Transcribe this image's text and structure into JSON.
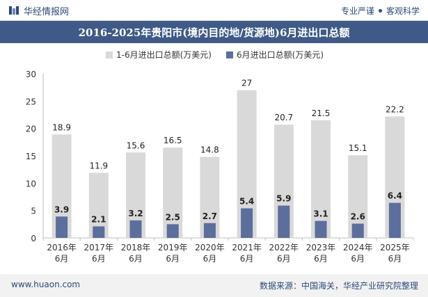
{
  "header": {
    "brand": "华经情报网",
    "tag1": "专业严谨",
    "tag2": "客观科学"
  },
  "title": "2016-2025年贵阳市(境内目的地/货源地)6月进出口总额",
  "footer": {
    "url": "www.huaon.com",
    "source": "数据来源：中国海关，华经产业研究院整理"
  },
  "colors": {
    "series1": "#d9d9d9",
    "series2": "#5b6e9c",
    "title_bg": "#3f5a86"
  },
  "chart_data": {
    "type": "bar",
    "categories": [
      "2016年\n6月",
      "2017年\n6月",
      "2018年\n6月",
      "2019年\n6月",
      "2020年\n6月",
      "2021年\n6月",
      "2022年\n6月",
      "2023年\n6月",
      "2024年\n6月",
      "2025年\n6月"
    ],
    "series": [
      {
        "name": "1-6月进出口总额(万美元)",
        "values": [
          18.9,
          11.9,
          15.6,
          16.5,
          14.8,
          27,
          20.7,
          21.5,
          15.1,
          22.2
        ]
      },
      {
        "name": "6月进出口总额(万美元)",
        "values": [
          3.9,
          2.1,
          3.2,
          2.5,
          2.7,
          5.4,
          5.9,
          3.1,
          2.6,
          6.4
        ]
      }
    ],
    "ylim": [
      0,
      30
    ],
    "yticks": [
      0,
      5,
      10,
      15,
      20,
      25,
      30
    ],
    "legend": "top-center",
    "grid": false
  }
}
